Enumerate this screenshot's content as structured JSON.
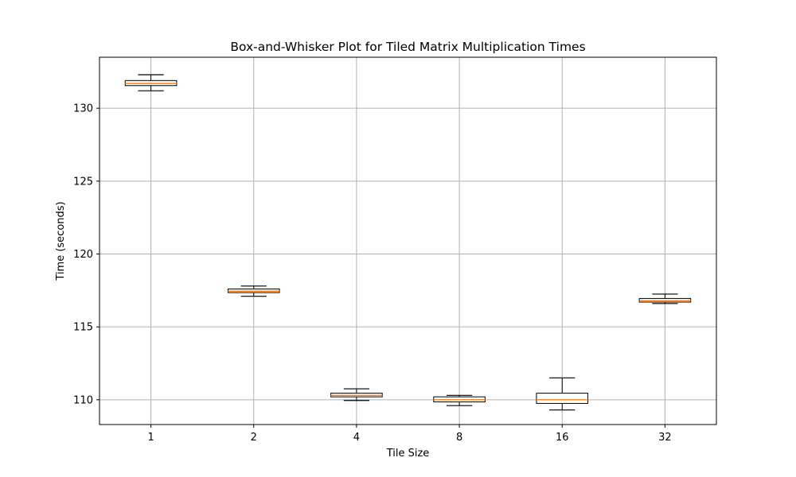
{
  "chart_data": {
    "type": "box",
    "title": "Box-and-Whisker Plot for Tiled Matrix Multiplication Times",
    "xlabel": "Tile Size",
    "ylabel": "Time (seconds)",
    "categories": [
      "1",
      "2",
      "4",
      "8",
      "16",
      "32"
    ],
    "ylim": [
      108.3,
      133.5
    ],
    "yticks": [
      110,
      115,
      120,
      125,
      130
    ],
    "grid": true,
    "boxes": [
      {
        "category": "1",
        "whisker_low": 131.2,
        "q1": 131.55,
        "median": 131.7,
        "q3": 131.9,
        "whisker_high": 132.3
      },
      {
        "category": "2",
        "whisker_low": 117.1,
        "q1": 117.35,
        "median": 117.45,
        "q3": 117.6,
        "whisker_high": 117.8
      },
      {
        "category": "4",
        "whisker_low": 109.95,
        "q1": 110.2,
        "median": 110.3,
        "q3": 110.45,
        "whisker_high": 110.75
      },
      {
        "category": "8",
        "whisker_low": 109.6,
        "q1": 109.85,
        "median": 110.0,
        "q3": 110.2,
        "whisker_high": 110.3
      },
      {
        "category": "16",
        "whisker_low": 109.3,
        "q1": 109.75,
        "median": 110.0,
        "q3": 110.45,
        "whisker_high": 111.5
      },
      {
        "category": "32",
        "whisker_low": 116.6,
        "q1": 116.7,
        "median": 116.8,
        "q3": 116.95,
        "whisker_high": 117.25
      }
    ],
    "colors": {
      "box": "#000000",
      "median": "#ff7f0e",
      "grid": "#b0b0b0"
    }
  }
}
